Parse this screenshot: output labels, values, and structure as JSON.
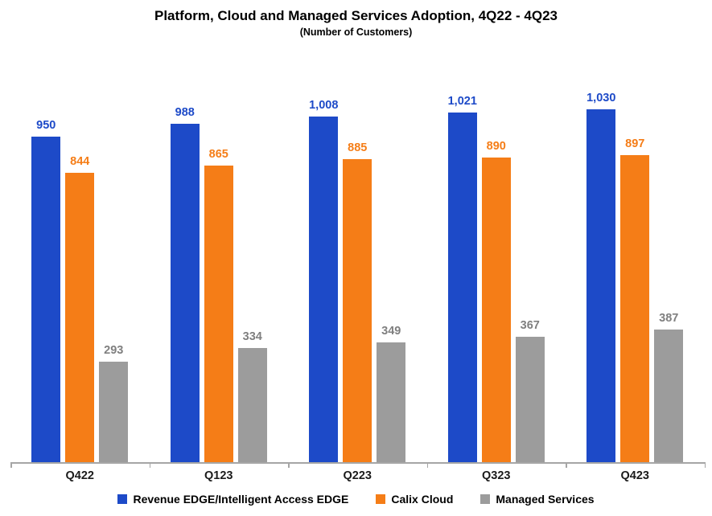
{
  "chart_data": {
    "type": "bar",
    "title": "Platform, Cloud and Managed Services Adoption, 4Q22 - 4Q23",
    "subtitle": "(Number of Customers)",
    "categories": [
      "Q422",
      "Q123",
      "Q223",
      "Q323",
      "Q423"
    ],
    "series": [
      {
        "name": "Revenue EDGE/Intelligent Access EDGE",
        "color": "#1d4ac8",
        "label_color": "#1d4ac8",
        "values": [
          950,
          988,
          1008,
          1021,
          1030
        ],
        "labels": [
          "950",
          "988",
          "1,008",
          "1,021",
          "1,030"
        ]
      },
      {
        "name": "Calix Cloud",
        "color": "#f57d17",
        "label_color": "#f57d17",
        "values": [
          844,
          865,
          885,
          890,
          897
        ],
        "labels": [
          "844",
          "865",
          "885",
          "890",
          "897"
        ]
      },
      {
        "name": "Managed Services",
        "color": "#9c9c9c",
        "label_color": "#7f7f7f",
        "values": [
          293,
          334,
          349,
          367,
          387
        ],
        "labels": [
          "293",
          "334",
          "349",
          "367",
          "387"
        ]
      }
    ],
    "ylim": [
      0,
      1100
    ],
    "xlabel": "",
    "ylabel": "",
    "grid": false,
    "legend_position": "bottom",
    "axis_color": "#a6a6a6"
  }
}
